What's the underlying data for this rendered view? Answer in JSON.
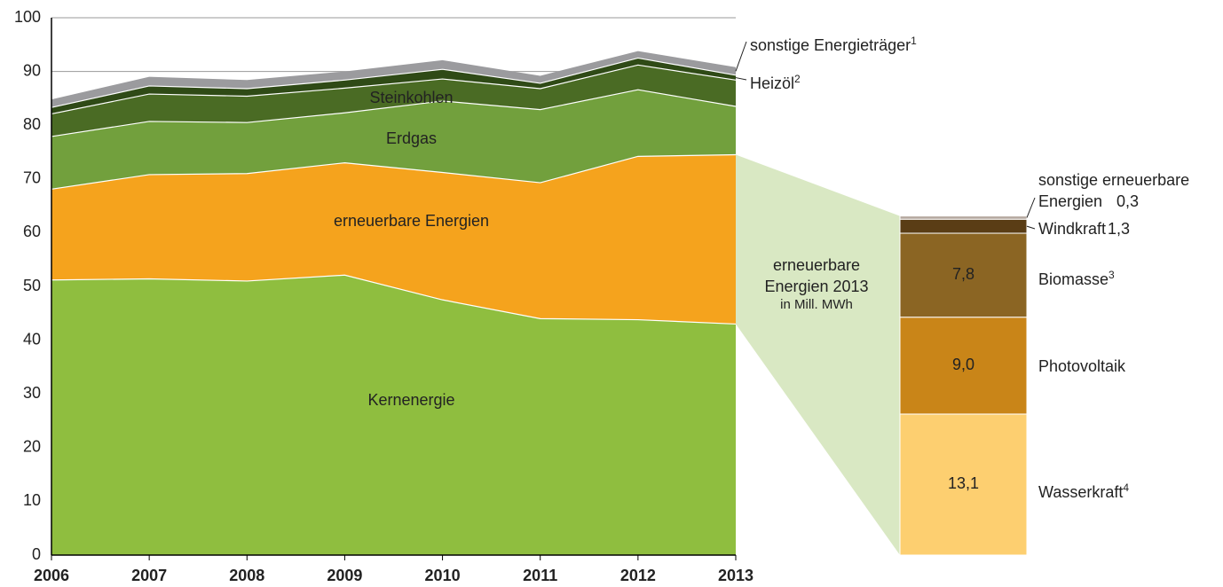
{
  "chart_data": [
    {
      "type": "stacked_area",
      "categories": [
        "2006",
        "2007",
        "2008",
        "2009",
        "2010",
        "2011",
        "2012",
        "2013"
      ],
      "ylim": [
        0,
        100
      ],
      "yticks": [
        0,
        10,
        20,
        30,
        40,
        50,
        60,
        70,
        80,
        90,
        100
      ],
      "grid": true,
      "series": [
        {
          "name": "Kernenergie",
          "color": "#8fbe3f",
          "values": [
            51.2,
            51.4,
            51.0,
            52.1,
            47.5,
            44.0,
            43.8,
            43.0
          ]
        },
        {
          "name": "erneuerbare Energien",
          "color": "#f5a31d",
          "values": [
            16.9,
            19.4,
            20.0,
            20.9,
            23.7,
            25.3,
            30.4,
            31.5
          ]
        },
        {
          "name": "Erdgas",
          "color": "#72a03d",
          "values": [
            9.8,
            9.9,
            9.5,
            9.3,
            13.3,
            13.6,
            12.4,
            9.0
          ]
        },
        {
          "name": "Steinkohlen",
          "color": "#4a6b24",
          "values": [
            4.2,
            5.1,
            4.9,
            4.6,
            4.1,
            3.9,
            4.6,
            4.9
          ]
        },
        {
          "name": "Heizöl",
          "sup": "2",
          "color": "#2f4a16",
          "values": [
            1.2,
            1.5,
            1.4,
            1.5,
            1.8,
            1.0,
            1.3,
            0.9
          ]
        },
        {
          "name": "sonstige Energieträger",
          "sup": "1",
          "color": "#9b9b9e",
          "values": [
            1.5,
            1.7,
            1.6,
            1.6,
            1.7,
            1.4,
            1.3,
            1.5
          ]
        }
      ]
    },
    {
      "type": "stacked_bar",
      "title": "erneuerbare Energien 2013",
      "subtitle": "in Mill. MWh",
      "series": [
        {
          "name": "Wasserkraft",
          "sup": "4",
          "color": "#fdcf70",
          "values": [
            13.1
          ],
          "value_labels": [
            "13,1"
          ]
        },
        {
          "name": "Photovoltaik",
          "color": "#c98518",
          "values": [
            9.0
          ],
          "value_labels": [
            "9,0"
          ]
        },
        {
          "name": "Biomasse",
          "sup": "3",
          "color": "#8b6523",
          "values": [
            7.8
          ],
          "value_labels": [
            "7,8"
          ]
        },
        {
          "name": "Windkraft",
          "color": "#5a3d15",
          "values": [
            1.3
          ],
          "value_labels": [
            "1,3"
          ]
        },
        {
          "name": "sonstige erneuerbare Energien",
          "color": "#b5a9a0",
          "values": [
            0.3
          ],
          "value_labels": [
            "0,3"
          ]
        }
      ]
    }
  ]
}
